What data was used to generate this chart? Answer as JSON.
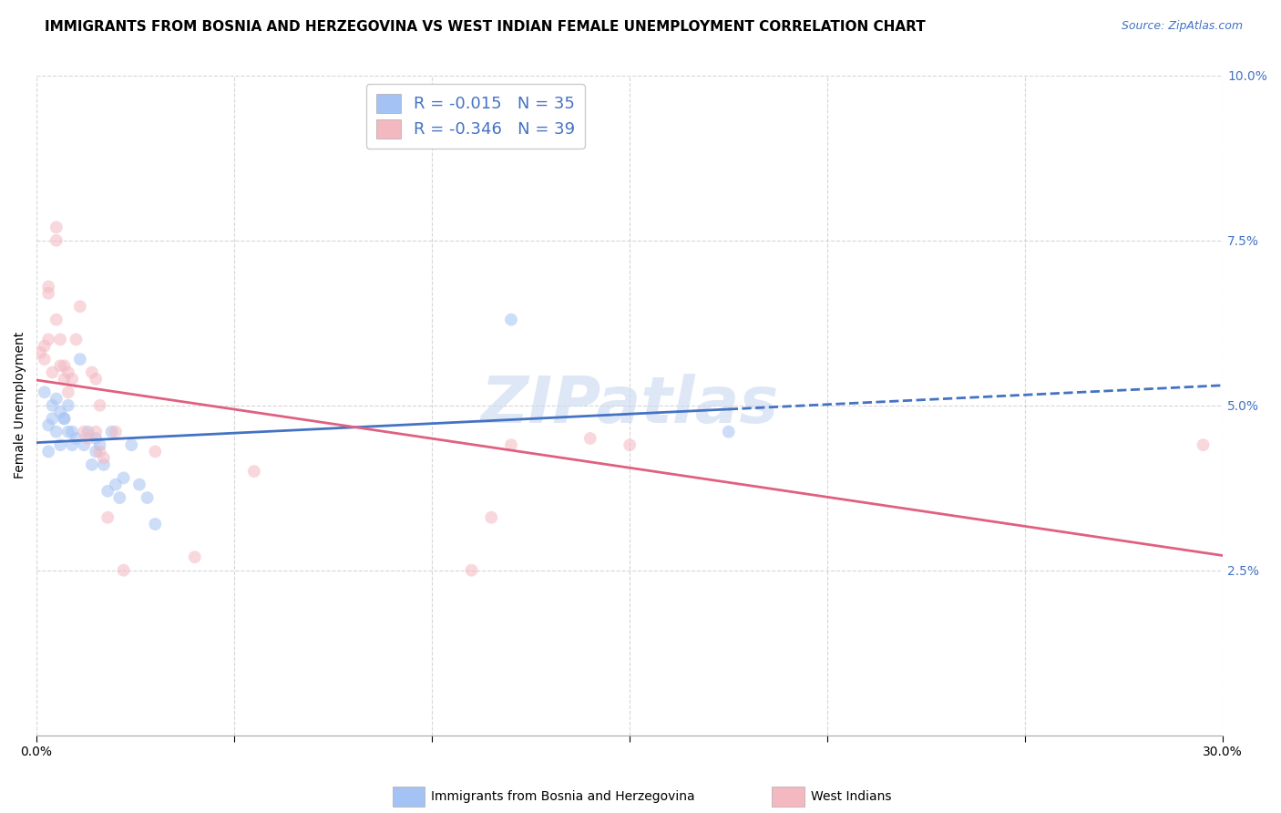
{
  "title": "IMMIGRANTS FROM BOSNIA AND HERZEGOVINA VS WEST INDIAN FEMALE UNEMPLOYMENT CORRELATION CHART",
  "source": "Source: ZipAtlas.com",
  "ylabel": "Female Unemployment",
  "xlim": [
    0.0,
    0.3
  ],
  "ylim": [
    0.0,
    0.1
  ],
  "xticks": [
    0.0,
    0.05,
    0.1,
    0.15,
    0.2,
    0.25,
    0.3
  ],
  "yticks": [
    0.0,
    0.025,
    0.05,
    0.075,
    0.1
  ],
  "legend_color1": "#a4c2f4",
  "legend_color2": "#f4b8c1",
  "blue_R": -0.015,
  "blue_N": 35,
  "pink_R": -0.346,
  "pink_N": 39,
  "watermark": "ZIPatlas",
  "blue_scatter_x": [
    0.002,
    0.003,
    0.003,
    0.004,
    0.004,
    0.005,
    0.005,
    0.006,
    0.006,
    0.007,
    0.007,
    0.008,
    0.008,
    0.009,
    0.009,
    0.01,
    0.011,
    0.012,
    0.013,
    0.014,
    0.015,
    0.015,
    0.016,
    0.017,
    0.018,
    0.019,
    0.02,
    0.021,
    0.022,
    0.024,
    0.026,
    0.028,
    0.03,
    0.12,
    0.175
  ],
  "blue_scatter_y": [
    0.052,
    0.047,
    0.043,
    0.05,
    0.048,
    0.051,
    0.046,
    0.049,
    0.044,
    0.048,
    0.048,
    0.05,
    0.046,
    0.046,
    0.044,
    0.045,
    0.057,
    0.044,
    0.046,
    0.041,
    0.045,
    0.043,
    0.044,
    0.041,
    0.037,
    0.046,
    0.038,
    0.036,
    0.039,
    0.044,
    0.038,
    0.036,
    0.032,
    0.063,
    0.046
  ],
  "pink_scatter_x": [
    0.001,
    0.002,
    0.002,
    0.003,
    0.003,
    0.003,
    0.004,
    0.005,
    0.005,
    0.005,
    0.006,
    0.006,
    0.007,
    0.007,
    0.008,
    0.008,
    0.009,
    0.01,
    0.011,
    0.012,
    0.013,
    0.014,
    0.015,
    0.015,
    0.016,
    0.016,
    0.017,
    0.018,
    0.02,
    0.022,
    0.03,
    0.04,
    0.055,
    0.11,
    0.115,
    0.12,
    0.14,
    0.15,
    0.295
  ],
  "pink_scatter_y": [
    0.058,
    0.059,
    0.057,
    0.068,
    0.067,
    0.06,
    0.055,
    0.075,
    0.077,
    0.063,
    0.06,
    0.056,
    0.056,
    0.054,
    0.055,
    0.052,
    0.054,
    0.06,
    0.065,
    0.046,
    0.045,
    0.055,
    0.054,
    0.046,
    0.05,
    0.043,
    0.042,
    0.033,
    0.046,
    0.025,
    0.043,
    0.027,
    0.04,
    0.025,
    0.033,
    0.044,
    0.045,
    0.044,
    0.044
  ],
  "background_color": "#ffffff",
  "grid_color": "#cccccc",
  "blue_line_color": "#4472c4",
  "pink_line_color": "#e06080",
  "scatter_alpha": 0.55,
  "scatter_size": 100,
  "title_fontsize": 11,
  "ylabel_fontsize": 10,
  "tick_fontsize": 10,
  "watermark_fontsize": 52,
  "watermark_color": "#c8d8f0",
  "source_color": "#4472c4"
}
